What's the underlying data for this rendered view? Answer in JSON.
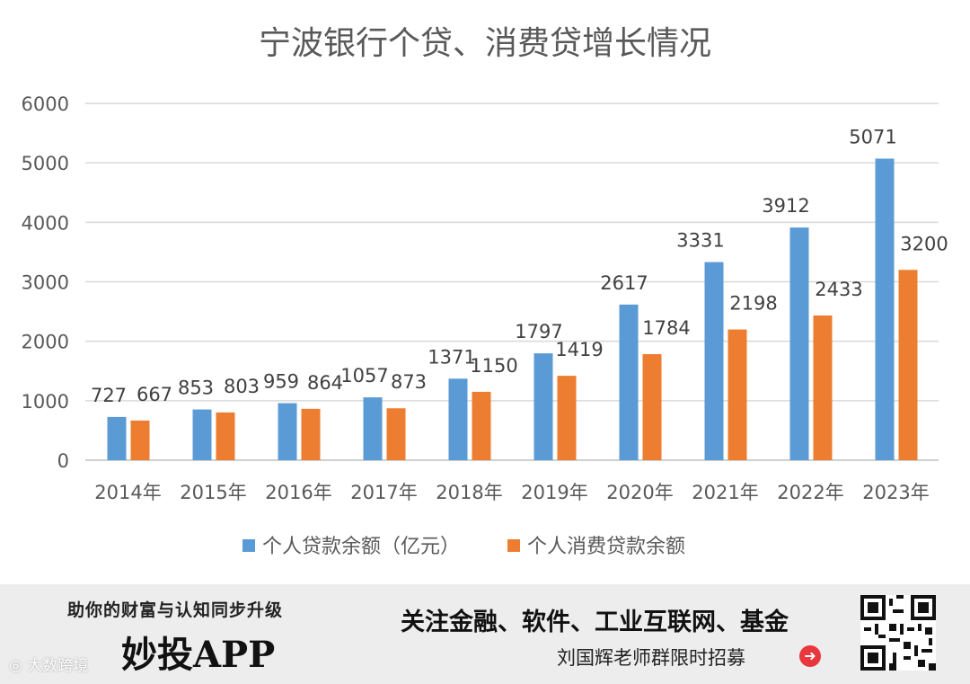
{
  "chart_data": {
    "type": "bar",
    "title": "宁波银行个贷、消费贷增长情况",
    "categories": [
      "2014年",
      "2015年",
      "2016年",
      "2017年",
      "2018年",
      "2019年",
      "2020年",
      "2021年",
      "2022年",
      "2023年"
    ],
    "series": [
      {
        "name": "个人贷款余额（亿元）",
        "color": "#5b9bd5",
        "values": [
          727,
          853,
          959,
          1057,
          1371,
          1797,
          2617,
          3331,
          3912,
          5071
        ]
      },
      {
        "name": "个人消费贷款余额",
        "color": "#ed7d31",
        "values": [
          667,
          803,
          864,
          873,
          1150,
          1419,
          1784,
          2198,
          2433,
          3200
        ]
      }
    ],
    "ylim": [
      0,
      6000
    ],
    "yticks": [
      0,
      1000,
      2000,
      3000,
      4000,
      5000,
      6000
    ],
    "xlabel": "",
    "ylabel": "",
    "grid": true,
    "legend": "bottom"
  },
  "banner": {
    "slogan": "助你的财富与认知同步升级",
    "app_name": "妙投APP",
    "focus": "关注金融、软件、工业互联网、基金",
    "recruit": "刘国辉老师群限时招募",
    "arrow_icon": "➜",
    "watermark": "大数跨境"
  }
}
